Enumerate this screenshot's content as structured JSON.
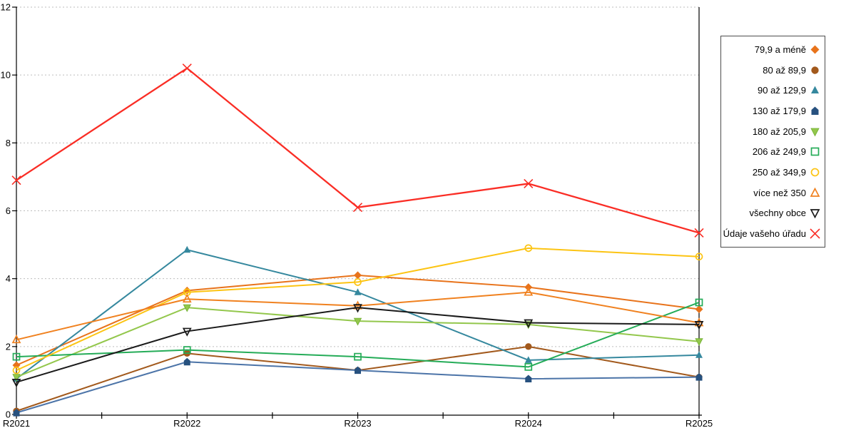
{
  "chart_data": {
    "type": "line",
    "title": "",
    "xlabel": "",
    "ylabel": "",
    "categories": [
      "R2021",
      "R2022",
      "R2023",
      "R2024",
      "R2025"
    ],
    "ylim": [
      0,
      12
    ],
    "yticks": [
      0,
      2,
      4,
      6,
      8,
      10,
      12
    ],
    "ytick_labels": [
      "0",
      "2",
      "4",
      "6",
      "8",
      "10",
      "12"
    ],
    "grid": "horizontal dashed",
    "grid_color": "#bdbdbd",
    "axis_color": "#000000",
    "legend_position": "right",
    "series": [
      {
        "name": "79,9 a méně",
        "marker": "diamond",
        "filled": true,
        "color": "#e8731b",
        "values": [
          1.45,
          3.65,
          4.1,
          3.75,
          3.1
        ]
      },
      {
        "name": "80 až 89,9",
        "marker": "circle",
        "filled": true,
        "color": "#a2591c",
        "values": [
          0.1,
          1.8,
          1.3,
          2.0,
          1.1
        ]
      },
      {
        "name": "90 až 129,9",
        "marker": "triangle-up",
        "filled": true,
        "color": "#35889e",
        "values": [
          1.05,
          4.85,
          3.6,
          1.6,
          1.75
        ]
      },
      {
        "name": "130 až 179,9",
        "marker": "pentagon",
        "filled": true,
        "color": "#27517f",
        "line_color": "#4c74a8",
        "values": [
          0.05,
          1.55,
          1.3,
          1.05,
          1.1
        ]
      },
      {
        "name": "180 až 205,9",
        "marker": "triangle-down",
        "filled": true,
        "color": "#93c74c",
        "values": [
          1.1,
          3.15,
          2.75,
          2.65,
          2.15
        ]
      },
      {
        "name": "206 až 249,9",
        "marker": "square-open",
        "filled": false,
        "color": "#25ac58",
        "values": [
          1.7,
          1.9,
          1.7,
          1.4,
          3.3
        ]
      },
      {
        "name": "250 až 349,9",
        "marker": "circle-open",
        "filled": false,
        "color": "#fcc413",
        "values": [
          1.3,
          3.6,
          3.9,
          4.9,
          4.65
        ]
      },
      {
        "name": "více než 350",
        "marker": "triangle-up-open",
        "filled": false,
        "color": "#f0811f",
        "values": [
          2.2,
          3.4,
          3.2,
          3.6,
          2.7
        ]
      },
      {
        "name": "všechny obce",
        "marker": "triangle-down-open",
        "filled": false,
        "color": "#1a1a1a",
        "values": [
          0.95,
          2.45,
          3.15,
          2.7,
          2.65
        ]
      },
      {
        "name": "Údaje vašeho úřadu",
        "marker": "x",
        "filled": false,
        "color": "#fa2d25",
        "values": [
          6.9,
          10.2,
          6.1,
          6.8,
          5.35
        ]
      }
    ]
  }
}
